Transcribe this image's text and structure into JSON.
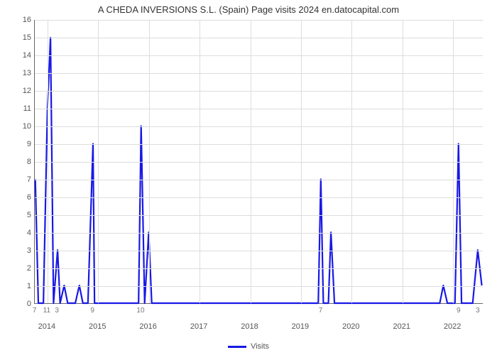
{
  "chart": {
    "type": "line",
    "title": "A CHEDA INVERSIONS S.L. (Spain) Page visits 2024 en.datocapital.com",
    "title_fontsize": 13,
    "title_color": "#333333",
    "background_color": "#ffffff",
    "grid_color": "#dddddd",
    "axis_color": "#666666",
    "tick_font_color": "#555555",
    "tick_fontsize": 11,
    "minor_tick_font_color": "#777777",
    "minor_tick_fontsize": 10,
    "line_color": "#1818e6",
    "line_width": 2.2,
    "ylim": [
      0,
      16
    ],
    "yticks": [
      0,
      1,
      2,
      3,
      4,
      5,
      6,
      7,
      8,
      9,
      10,
      11,
      12,
      13,
      14,
      15,
      16
    ],
    "x_years": [
      2014,
      2015,
      2016,
      2017,
      2018,
      2019,
      2020,
      2021,
      2022
    ],
    "x_domain": [
      2013.75,
      2022.6
    ],
    "legend": {
      "label": "Visits",
      "color": "#1818e6"
    },
    "series": [
      {
        "x": 2013.76,
        "y": 7
      },
      {
        "x": 2013.82,
        "y": 0
      },
      {
        "x": 2013.92,
        "y": 0
      },
      {
        "x": 2014.0,
        "y": 11
      },
      {
        "x": 2014.06,
        "y": 15
      },
      {
        "x": 2014.12,
        "y": 0
      },
      {
        "x": 2014.2,
        "y": 3
      },
      {
        "x": 2014.25,
        "y": 0
      },
      {
        "x": 2014.33,
        "y": 1
      },
      {
        "x": 2014.4,
        "y": 0
      },
      {
        "x": 2014.55,
        "y": 0
      },
      {
        "x": 2014.63,
        "y": 1
      },
      {
        "x": 2014.7,
        "y": 0
      },
      {
        "x": 2014.8,
        "y": 0
      },
      {
        "x": 2014.9,
        "y": 9
      },
      {
        "x": 2014.93,
        "y": 0
      },
      {
        "x": 2015.5,
        "y": 0
      },
      {
        "x": 2015.8,
        "y": 0
      },
      {
        "x": 2015.85,
        "y": 10
      },
      {
        "x": 2015.92,
        "y": 0
      },
      {
        "x": 2016.0,
        "y": 4
      },
      {
        "x": 2016.06,
        "y": 0
      },
      {
        "x": 2017.0,
        "y": 0
      },
      {
        "x": 2018.0,
        "y": 0
      },
      {
        "x": 2019.0,
        "y": 0
      },
      {
        "x": 2019.35,
        "y": 0
      },
      {
        "x": 2019.4,
        "y": 7
      },
      {
        "x": 2019.45,
        "y": 0
      },
      {
        "x": 2019.55,
        "y": 0
      },
      {
        "x": 2019.6,
        "y": 4
      },
      {
        "x": 2019.67,
        "y": 0
      },
      {
        "x": 2020.5,
        "y": 0
      },
      {
        "x": 2021.5,
        "y": 0
      },
      {
        "x": 2021.75,
        "y": 0
      },
      {
        "x": 2021.82,
        "y": 1
      },
      {
        "x": 2021.9,
        "y": 0
      },
      {
        "x": 2022.05,
        "y": 0
      },
      {
        "x": 2022.12,
        "y": 9
      },
      {
        "x": 2022.18,
        "y": 0
      },
      {
        "x": 2022.4,
        "y": 0
      },
      {
        "x": 2022.5,
        "y": 3
      },
      {
        "x": 2022.58,
        "y": 1
      }
    ],
    "x_value_markers": [
      {
        "x": 2013.76,
        "label": "7"
      },
      {
        "x": 2014.0,
        "label": "11"
      },
      {
        "x": 2014.2,
        "label": "3"
      },
      {
        "x": 2014.9,
        "label": "9"
      },
      {
        "x": 2015.85,
        "label": "10"
      },
      {
        "x": 2019.4,
        "label": "7"
      },
      {
        "x": 2022.12,
        "label": "9"
      },
      {
        "x": 2022.5,
        "label": "3"
      }
    ]
  }
}
